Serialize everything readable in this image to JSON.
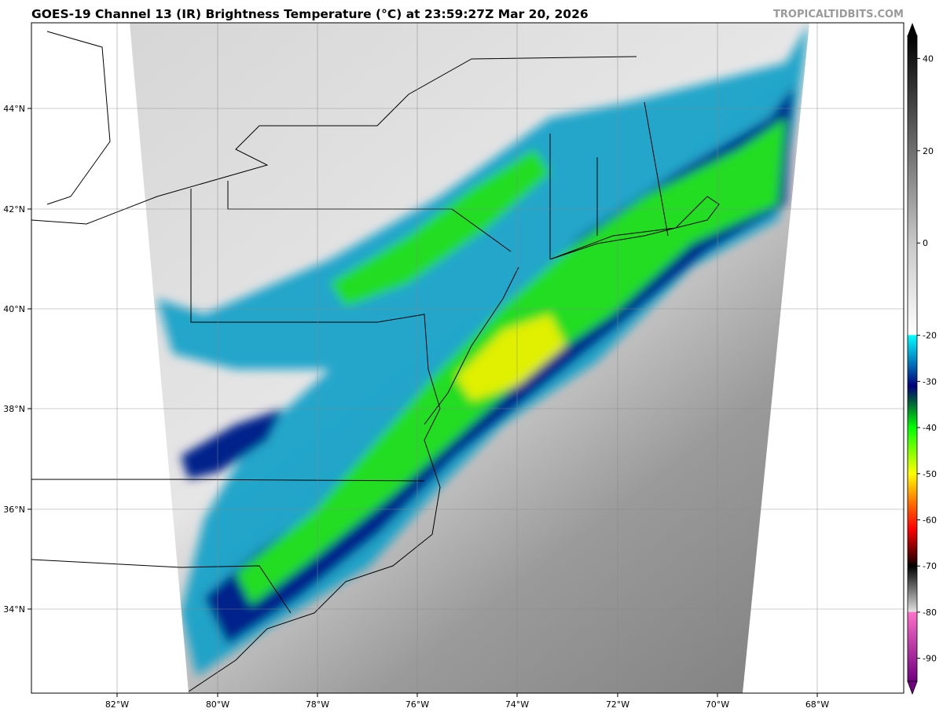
{
  "header": {
    "title": "GOES-19 Channel 13 (IR) Brightness Temperature (°C) at 23:59:27Z Mar 20, 2026",
    "brand": "TROPICALTIDBITS.COM"
  },
  "map": {
    "lon_labels": [
      "82°W",
      "80°W",
      "78°W",
      "76°W",
      "74°W",
      "72°W",
      "70°W",
      "68°W"
    ],
    "lat_labels": [
      "44°N",
      "42°N",
      "40°N",
      "38°N",
      "36°N",
      "34°N"
    ],
    "lon_range": [
      -83.7,
      -66.3
    ],
    "lat_range": [
      32.3,
      45.7
    ],
    "grid": true
  },
  "colorbar": {
    "ticks": [
      "40",
      "20",
      "0",
      "-20",
      "-30",
      "-40",
      "-50",
      "-60",
      "-70",
      "-80",
      "-90"
    ],
    "tick_values": [
      40,
      20,
      0,
      -20,
      -30,
      -40,
      -50,
      -60,
      -70,
      -80,
      -90
    ],
    "range": [
      -95,
      45
    ],
    "stops": [
      {
        "v": 45,
        "c": "#000000"
      },
      {
        "v": 0,
        "c": "#c8c8c8"
      },
      {
        "v": -19.9,
        "c": "#ffffff"
      },
      {
        "v": -20,
        "c": "#00ffff"
      },
      {
        "v": -27,
        "c": "#0060b0"
      },
      {
        "v": -31,
        "c": "#00007a"
      },
      {
        "v": -34,
        "c": "#005040"
      },
      {
        "v": -40,
        "c": "#00ff00"
      },
      {
        "v": -50,
        "c": "#ffff00"
      },
      {
        "v": -57,
        "c": "#ff6000"
      },
      {
        "v": -62,
        "c": "#ff0000"
      },
      {
        "v": -69,
        "c": "#300000"
      },
      {
        "v": -70,
        "c": "#000000"
      },
      {
        "v": -79.9,
        "c": "#e0e0e0"
      },
      {
        "v": -80,
        "c": "#ff70c8"
      },
      {
        "v": -95,
        "c": "#700080"
      }
    ]
  }
}
